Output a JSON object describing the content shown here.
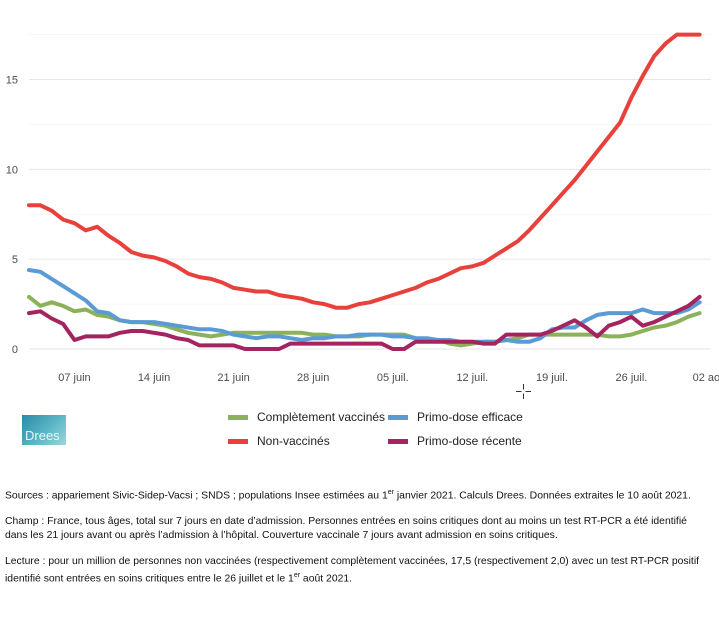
{
  "chart_data": {
    "type": "line",
    "title": "",
    "xlabel": "",
    "ylabel": "",
    "ylim": [
      -0.5,
      18.2
    ],
    "xlim": [
      "2021-06-03",
      "2021-08-02"
    ],
    "grid": true,
    "y_ticks": [
      0,
      5,
      10,
      15
    ],
    "y_tick_labels": [
      "0",
      "5",
      "10",
      "15"
    ],
    "x_ticks": [
      "2021-06-07",
      "2021-06-14",
      "2021-06-21",
      "2021-06-28",
      "2021-07-05",
      "2021-07-12",
      "2021-07-19",
      "2021-07-26",
      "2021-08-02"
    ],
    "x_tick_labels": [
      "07 juin",
      "14 juin",
      "21 juin",
      "28 juin",
      "05 juil.",
      "12 juil.",
      "19 juil.",
      "26 juil.",
      "02 août"
    ],
    "legend_position": "bottom",
    "series": [
      {
        "name": "Complètement vaccinés",
        "color": "#8bb25a",
        "x": [
          "2021-06-03",
          "2021-06-04",
          "2021-06-05",
          "2021-06-06",
          "2021-06-07",
          "2021-06-08",
          "2021-06-09",
          "2021-06-10",
          "2021-06-11",
          "2021-06-12",
          "2021-06-13",
          "2021-06-14",
          "2021-06-15",
          "2021-06-16",
          "2021-06-17",
          "2021-06-18",
          "2021-06-19",
          "2021-06-20",
          "2021-06-21",
          "2021-06-22",
          "2021-06-23",
          "2021-06-24",
          "2021-06-25",
          "2021-06-26",
          "2021-06-27",
          "2021-06-28",
          "2021-06-29",
          "2021-06-30",
          "2021-07-01",
          "2021-07-02",
          "2021-07-03",
          "2021-07-04",
          "2021-07-05",
          "2021-07-06",
          "2021-07-07",
          "2021-07-08",
          "2021-07-09",
          "2021-07-10",
          "2021-07-11",
          "2021-07-12",
          "2021-07-13",
          "2021-07-14",
          "2021-07-15",
          "2021-07-16",
          "2021-07-17",
          "2021-07-18",
          "2021-07-19",
          "2021-07-20",
          "2021-07-21",
          "2021-07-22",
          "2021-07-23",
          "2021-07-24",
          "2021-07-25",
          "2021-07-26",
          "2021-07-27",
          "2021-07-28",
          "2021-07-29",
          "2021-07-30",
          "2021-07-31",
          "2021-08-01"
        ],
        "values": [
          2.9,
          2.4,
          2.6,
          2.4,
          2.1,
          2.2,
          1.9,
          1.8,
          1.6,
          1.5,
          1.5,
          1.4,
          1.3,
          1.1,
          0.9,
          0.8,
          0.7,
          0.8,
          0.9,
          0.9,
          0.9,
          0.9,
          0.9,
          0.9,
          0.9,
          0.8,
          0.8,
          0.7,
          0.7,
          0.7,
          0.8,
          0.8,
          0.8,
          0.8,
          0.6,
          0.5,
          0.5,
          0.3,
          0.2,
          0.3,
          0.4,
          0.4,
          0.5,
          0.6,
          0.8,
          0.8,
          0.8,
          0.8,
          0.8,
          0.8,
          0.8,
          0.7,
          0.7,
          0.8,
          1.0,
          1.2,
          1.3,
          1.5,
          1.8,
          2.0
        ]
      },
      {
        "name": "Non-vaccinés",
        "color": "#e8413c",
        "x": [
          "2021-06-03",
          "2021-06-04",
          "2021-06-05",
          "2021-06-06",
          "2021-06-07",
          "2021-06-08",
          "2021-06-09",
          "2021-06-10",
          "2021-06-11",
          "2021-06-12",
          "2021-06-13",
          "2021-06-14",
          "2021-06-15",
          "2021-06-16",
          "2021-06-17",
          "2021-06-18",
          "2021-06-19",
          "2021-06-20",
          "2021-06-21",
          "2021-06-22",
          "2021-06-23",
          "2021-06-24",
          "2021-06-25",
          "2021-06-26",
          "2021-06-27",
          "2021-06-28",
          "2021-06-29",
          "2021-06-30",
          "2021-07-01",
          "2021-07-02",
          "2021-07-03",
          "2021-07-04",
          "2021-07-05",
          "2021-07-06",
          "2021-07-07",
          "2021-07-08",
          "2021-07-09",
          "2021-07-10",
          "2021-07-11",
          "2021-07-12",
          "2021-07-13",
          "2021-07-14",
          "2021-07-15",
          "2021-07-16",
          "2021-07-17",
          "2021-07-18",
          "2021-07-19",
          "2021-07-20",
          "2021-07-21",
          "2021-07-22",
          "2021-07-23",
          "2021-07-24",
          "2021-07-25",
          "2021-07-26",
          "2021-07-27",
          "2021-07-28",
          "2021-07-29",
          "2021-07-30",
          "2021-07-31",
          "2021-08-01"
        ],
        "values": [
          8.0,
          8.0,
          7.7,
          7.2,
          7.0,
          6.6,
          6.8,
          6.3,
          5.9,
          5.4,
          5.2,
          5.1,
          4.9,
          4.6,
          4.2,
          4.0,
          3.9,
          3.7,
          3.4,
          3.3,
          3.2,
          3.2,
          3.0,
          2.9,
          2.8,
          2.6,
          2.5,
          2.3,
          2.3,
          2.5,
          2.6,
          2.8,
          3.0,
          3.2,
          3.4,
          3.7,
          3.9,
          4.2,
          4.5,
          4.6,
          4.8,
          5.2,
          5.6,
          6.0,
          6.6,
          7.3,
          8.0,
          8.7,
          9.4,
          10.2,
          11.0,
          11.8,
          12.6,
          14.0,
          15.2,
          16.3,
          17.0,
          17.5,
          17.5,
          17.5
        ]
      },
      {
        "name": "Primo-dose efficace",
        "color": "#5b9bd5",
        "x": [
          "2021-06-03",
          "2021-06-04",
          "2021-06-05",
          "2021-06-06",
          "2021-06-07",
          "2021-06-08",
          "2021-06-09",
          "2021-06-10",
          "2021-06-11",
          "2021-06-12",
          "2021-06-13",
          "2021-06-14",
          "2021-06-15",
          "2021-06-16",
          "2021-06-17",
          "2021-06-18",
          "2021-06-19",
          "2021-06-20",
          "2021-06-21",
          "2021-06-22",
          "2021-06-23",
          "2021-06-24",
          "2021-06-25",
          "2021-06-26",
          "2021-06-27",
          "2021-06-28",
          "2021-06-29",
          "2021-06-30",
          "2021-07-01",
          "2021-07-02",
          "2021-07-03",
          "2021-07-04",
          "2021-07-05",
          "2021-07-06",
          "2021-07-07",
          "2021-07-08",
          "2021-07-09",
          "2021-07-10",
          "2021-07-11",
          "2021-07-12",
          "2021-07-13",
          "2021-07-14",
          "2021-07-15",
          "2021-07-16",
          "2021-07-17",
          "2021-07-18",
          "2021-07-19",
          "2021-07-20",
          "2021-07-21",
          "2021-07-22",
          "2021-07-23",
          "2021-07-24",
          "2021-07-25",
          "2021-07-26",
          "2021-07-27",
          "2021-07-28",
          "2021-07-29",
          "2021-07-30",
          "2021-07-31",
          "2021-08-01"
        ],
        "values": [
          4.4,
          4.3,
          3.9,
          3.5,
          3.1,
          2.7,
          2.1,
          2.0,
          1.6,
          1.5,
          1.5,
          1.5,
          1.4,
          1.3,
          1.2,
          1.1,
          1.1,
          1.0,
          0.8,
          0.7,
          0.6,
          0.7,
          0.7,
          0.6,
          0.5,
          0.6,
          0.6,
          0.7,
          0.7,
          0.8,
          0.8,
          0.8,
          0.7,
          0.7,
          0.6,
          0.6,
          0.5,
          0.5,
          0.4,
          0.4,
          0.4,
          0.4,
          0.5,
          0.4,
          0.4,
          0.6,
          1.1,
          1.2,
          1.2,
          1.6,
          1.9,
          2.0,
          2.0,
          2.0,
          2.2,
          2.0,
          2.0,
          2.0,
          2.2,
          2.6
        ]
      },
      {
        "name": "Primo-dose récente",
        "color": "#a3245f",
        "x": [
          "2021-06-03",
          "2021-06-04",
          "2021-06-05",
          "2021-06-06",
          "2021-06-07",
          "2021-06-08",
          "2021-06-09",
          "2021-06-10",
          "2021-06-11",
          "2021-06-12",
          "2021-06-13",
          "2021-06-14",
          "2021-06-15",
          "2021-06-16",
          "2021-06-17",
          "2021-06-18",
          "2021-06-19",
          "2021-06-20",
          "2021-06-21",
          "2021-06-22",
          "2021-06-23",
          "2021-06-24",
          "2021-06-25",
          "2021-06-26",
          "2021-06-27",
          "2021-06-28",
          "2021-06-29",
          "2021-06-30",
          "2021-07-01",
          "2021-07-02",
          "2021-07-03",
          "2021-07-04",
          "2021-07-05",
          "2021-07-06",
          "2021-07-07",
          "2021-07-08",
          "2021-07-09",
          "2021-07-10",
          "2021-07-11",
          "2021-07-12",
          "2021-07-13",
          "2021-07-14",
          "2021-07-15",
          "2021-07-16",
          "2021-07-17",
          "2021-07-18",
          "2021-07-19",
          "2021-07-20",
          "2021-07-21",
          "2021-07-22",
          "2021-07-23",
          "2021-07-24",
          "2021-07-25",
          "2021-07-26",
          "2021-07-27",
          "2021-07-28",
          "2021-07-29",
          "2021-07-30",
          "2021-07-31",
          "2021-08-01"
        ],
        "values": [
          2.0,
          2.1,
          1.7,
          1.4,
          0.5,
          0.7,
          0.7,
          0.7,
          0.9,
          1.0,
          1.0,
          0.9,
          0.8,
          0.6,
          0.5,
          0.2,
          0.2,
          0.2,
          0.2,
          0.0,
          0.0,
          0.0,
          0.0,
          0.3,
          0.3,
          0.3,
          0.3,
          0.3,
          0.3,
          0.3,
          0.3,
          0.3,
          0.0,
          0.0,
          0.4,
          0.4,
          0.4,
          0.4,
          0.4,
          0.4,
          0.3,
          0.3,
          0.8,
          0.8,
          0.8,
          0.8,
          1.0,
          1.3,
          1.6,
          1.2,
          0.7,
          1.3,
          1.5,
          1.8,
          1.3,
          1.5,
          1.8,
          2.1,
          2.4,
          2.9
        ]
      }
    ]
  },
  "legend": {
    "items": [
      {
        "label": "Complètement vaccinés",
        "color": "#8bb25a"
      },
      {
        "label": "Primo-dose efficace",
        "color": "#5b9bd5"
      },
      {
        "label": "Non-vaccinés",
        "color": "#e8413c"
      },
      {
        "label": "Primo-dose récente",
        "color": "#a3245f"
      }
    ]
  },
  "logo": {
    "text": "Drees"
  },
  "notes": {
    "sources": "Sources : appariement Sivic-Sidep-Vacsi ; SNDS ; populations Insee estimées au 1er janvier 2021. Calculs Drees. Données extraites le 10 août 2021.",
    "champ": "Champ : France, tous âges, total sur 7 jours en date d’admission. Personnes entrées en soins critiques dont au moins un test RT-PCR a été identifié dans les 21 jours avant ou après l’admission à l’hôpital. Couverture vaccinale 7 jours avant admission en soins critiques.",
    "lecture": "Lecture : pour un million de personnes non vaccinées (respectivement complètement vaccinées, 17,5 (respectivement 2,0) avec un test RT-PCR positif identifié sont entrées en soins critiques entre le 26 juillet et le 1er août 2021."
  }
}
